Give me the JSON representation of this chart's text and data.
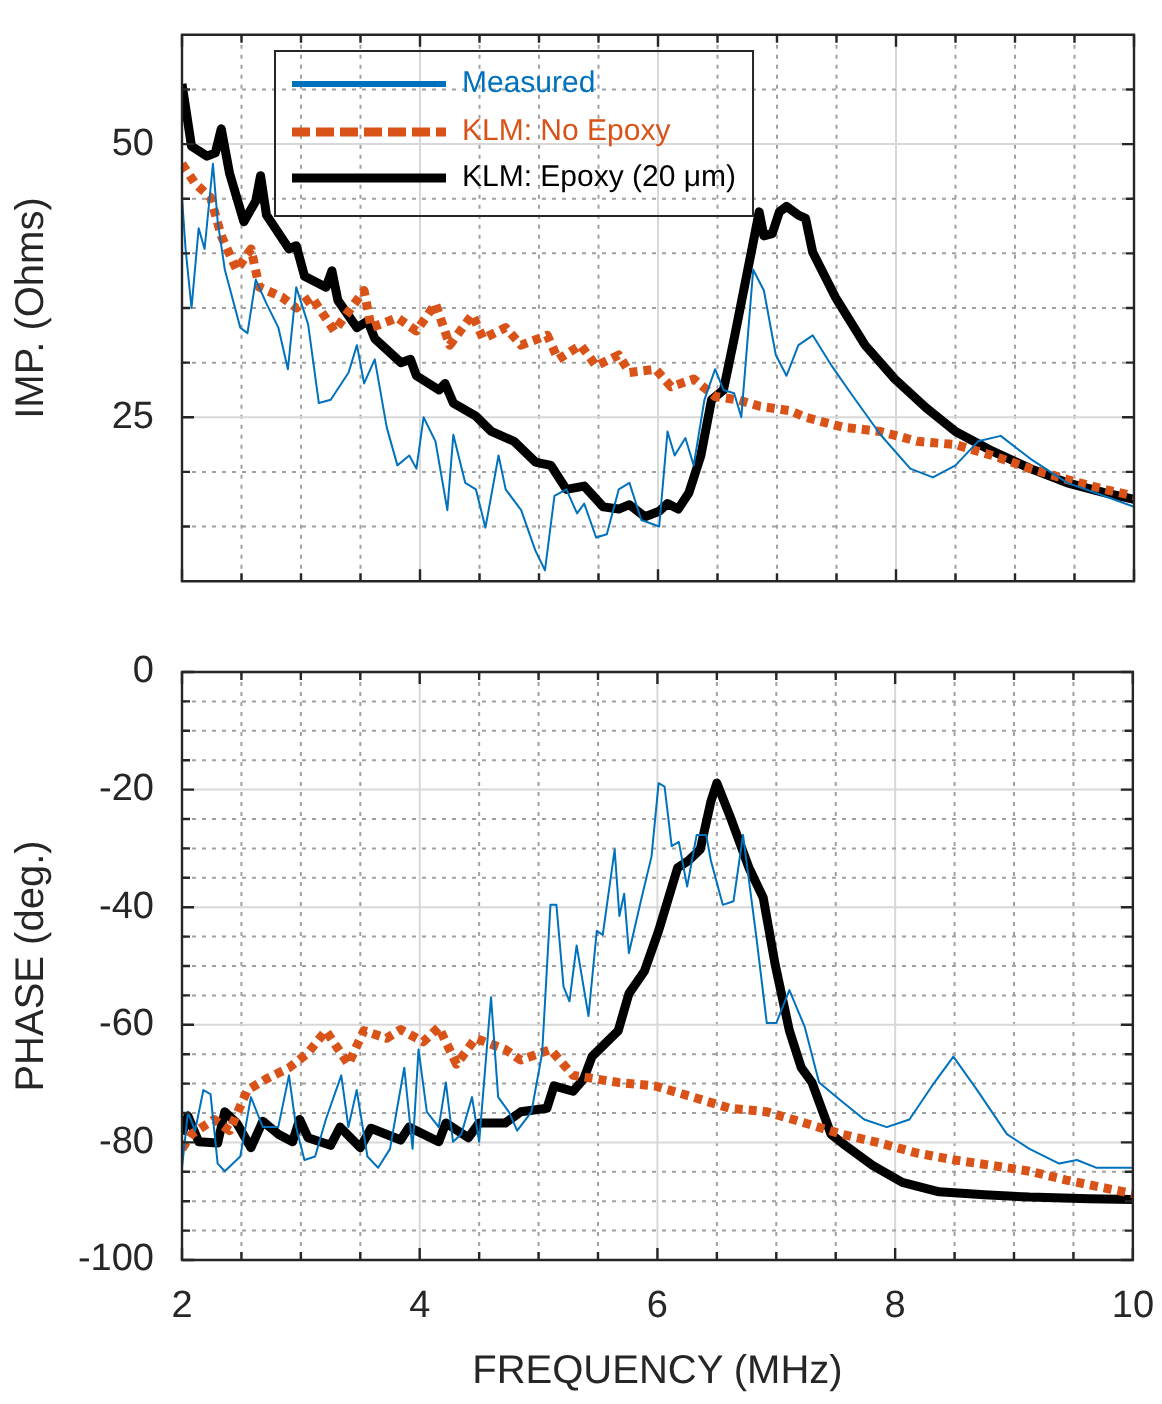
{
  "chart_data": [
    {
      "type": "line",
      "ylabel": "IMP. (Ohms)",
      "legend": "top",
      "grid": true,
      "marker": "none",
      "tick_labels": "y",
      "xlim": [
        2,
        10
      ],
      "xticks": [
        2,
        {
          "value": 2.5,
          "label": null
        },
        {
          "value": 3,
          "label": null
        },
        {
          "value": 3.5,
          "label": null
        },
        4,
        {
          "value": 4.5,
          "label": null
        },
        {
          "value": 5,
          "label": null
        },
        {
          "value": 5.5,
          "label": null
        },
        6,
        {
          "value": 6.5,
          "label": null
        },
        {
          "value": 7,
          "label": null
        },
        {
          "value": 7.5,
          "label": null
        },
        8,
        {
          "value": 8.5,
          "label": null
        },
        {
          "value": 9,
          "label": null
        },
        {
          "value": 9.5,
          "label": null
        },
        10
      ],
      "ylim": [
        10,
        60
      ],
      "yticks": [
        {
          "value": 15,
          "label": null
        },
        {
          "value": 20,
          "label": null
        },
        25,
        {
          "value": 30,
          "label": null
        },
        {
          "value": 35,
          "label": null
        },
        {
          "value": 40,
          "label": null
        },
        {
          "value": 45,
          "label": null
        },
        50,
        {
          "value": 55,
          "label": null
        }
      ],
      "series": [
        {
          "name": "Measured",
          "color": "#0072bd",
          "line_style": "solid",
          "x": [
            2.0,
            2.03,
            2.08,
            2.14,
            2.19,
            2.26,
            2.3,
            2.36,
            2.49,
            2.55,
            2.62,
            2.71,
            2.81,
            2.89,
            2.96,
            3.06,
            3.15,
            3.25,
            3.4,
            3.47,
            3.53,
            3.62,
            3.72,
            3.81,
            3.91,
            3.97,
            4.03,
            4.13,
            4.23,
            4.28,
            4.38,
            4.47,
            4.55,
            4.66,
            4.72,
            4.85,
            4.97,
            5.05,
            5.13,
            5.23,
            5.32,
            5.38,
            5.48,
            5.57,
            5.67,
            5.76,
            5.86,
            6.01,
            6.08,
            6.14,
            6.23,
            6.3,
            6.39,
            6.48,
            6.55,
            6.64,
            6.7,
            6.8,
            6.89,
            6.99,
            7.08,
            7.18,
            7.3,
            7.46,
            7.62,
            7.87,
            8.12,
            8.31,
            8.5,
            8.69,
            8.88,
            9.13,
            9.44,
            9.75,
            10
          ],
          "values": [
            45.1,
            40.4,
            35.0,
            42.3,
            40.4,
            48.2,
            42.9,
            38.5,
            33.2,
            32.7,
            37.6,
            35.4,
            33.2,
            29.4,
            36.9,
            33.5,
            26.3,
            26.6,
            29.1,
            31.6,
            28.1,
            30.3,
            24.1,
            20.6,
            21.5,
            20.3,
            25.0,
            22.8,
            16.5,
            23.4,
            19.0,
            18.4,
            14.9,
            21.5,
            18.4,
            16.5,
            12.8,
            11.0,
            17.8,
            18.4,
            16.2,
            17.1,
            14.0,
            14.3,
            18.4,
            19.0,
            15.6,
            15.0,
            23.7,
            21.5,
            23.1,
            20.6,
            26.6,
            29.4,
            27.5,
            27.2,
            25.0,
            38.5,
            36.6,
            30.7,
            28.8,
            31.6,
            32.5,
            29.7,
            27.2,
            23.4,
            20.3,
            19.5,
            20.6,
            22.8,
            23.3,
            21.2,
            19.0,
            17.8,
            16.8
          ]
        },
        {
          "name": "KLM: No Epoxy",
          "color": "#d95319",
          "line_style": "dotted",
          "x": [
            2.0,
            2.11,
            2.24,
            2.33,
            2.46,
            2.58,
            2.65,
            2.84,
            2.96,
            3.09,
            3.28,
            3.53,
            3.59,
            3.81,
            3.97,
            4.13,
            4.25,
            4.44,
            4.53,
            4.72,
            4.85,
            5.07,
            5.16,
            5.35,
            5.48,
            5.67,
            5.76,
            5.98,
            6.11,
            6.3,
            6.48,
            6.67,
            6.86,
            7.11,
            7.24,
            7.55,
            7.87,
            8.18,
            8.5,
            8.81,
            9.13,
            9.44,
            9.75,
            10
          ],
          "values": [
            48.2,
            46.4,
            45.1,
            41.6,
            38.5,
            40.4,
            36.9,
            36.0,
            35.0,
            36.0,
            32.9,
            36.6,
            33.2,
            34.1,
            32.9,
            35.4,
            31.6,
            34.4,
            32.2,
            33.2,
            31.6,
            32.5,
            30.3,
            31.6,
            29.7,
            30.7,
            29.1,
            29.4,
            27.8,
            28.5,
            26.9,
            26.6,
            26.0,
            25.6,
            25.0,
            24.1,
            23.7,
            22.8,
            22.5,
            21.5,
            20.3,
            19.3,
            18.4,
            17.8
          ]
        },
        {
          "name": "KLM: Epoxy (20 μm)",
          "color": "#000000",
          "line_style": "solid",
          "x": [
            2.0,
            2.08,
            2.21,
            2.28,
            2.33,
            2.4,
            2.52,
            2.62,
            2.66,
            2.71,
            2.9,
            2.96,
            3.03,
            3.21,
            3.26,
            3.31,
            3.47,
            3.56,
            3.62,
            3.84,
            3.92,
            3.97,
            4.16,
            4.21,
            4.28,
            4.47,
            4.6,
            4.79,
            4.97,
            5.1,
            5.23,
            5.38,
            5.54,
            5.67,
            5.76,
            5.89,
            6.01,
            6.08,
            6.17,
            6.26,
            6.36,
            6.45,
            6.55,
            6.64,
            6.8,
            6.85,
            6.89,
            6.96,
            7.02,
            7.08,
            7.18,
            7.24,
            7.3,
            7.49,
            7.74,
            7.99,
            8.25,
            8.5,
            8.81,
            9.13,
            9.44,
            9.75,
            10
          ],
          "values": [
            55.5,
            49.8,
            48.9,
            49.2,
            51.4,
            47.3,
            42.9,
            44.8,
            47.1,
            43.5,
            40.4,
            40.7,
            37.9,
            36.9,
            38.4,
            35.7,
            33.2,
            33.8,
            32.2,
            30.0,
            30.3,
            28.8,
            27.5,
            28.1,
            26.3,
            25.1,
            23.7,
            22.8,
            20.9,
            20.6,
            18.4,
            18.7,
            16.8,
            16.6,
            17.0,
            15.9,
            16.4,
            17.1,
            16.6,
            18.1,
            21.5,
            26.6,
            27.5,
            32.2,
            41.0,
            43.8,
            41.6,
            41.8,
            43.8,
            44.3,
            43.5,
            43.2,
            40.1,
            36.0,
            31.6,
            28.5,
            25.9,
            23.7,
            21.9,
            20.3,
            19.0,
            18.1,
            17.5
          ]
        }
      ]
    },
    {
      "type": "line",
      "xlabel": "FREQUENCY (MHz)",
      "ylabel": "PHASE (deg.)",
      "grid": true,
      "marker": "none",
      "xlim": [
        2,
        10
      ],
      "xticks": [
        2,
        {
          "value": 2.5,
          "label": null
        },
        {
          "value": 3,
          "label": null
        },
        {
          "value": 3.5,
          "label": null
        },
        4,
        {
          "value": 4.5,
          "label": null
        },
        {
          "value": 5,
          "label": null
        },
        {
          "value": 5.5,
          "label": null
        },
        6,
        {
          "value": 6.5,
          "label": null
        },
        {
          "value": 7,
          "label": null
        },
        {
          "value": 7.5,
          "label": null
        },
        8,
        {
          "value": 8.5,
          "label": null
        },
        {
          "value": 9,
          "label": null
        },
        {
          "value": 9.5,
          "label": null
        },
        10
      ],
      "ylim": [
        -100,
        0
      ],
      "yticks": [
        -100,
        {
          "value": -95,
          "label": null
        },
        {
          "value": -90,
          "label": null
        },
        {
          "value": -85,
          "label": null
        },
        -80,
        {
          "value": -75,
          "label": null
        },
        {
          "value": -70,
          "label": null
        },
        {
          "value": -65,
          "label": null
        },
        -60,
        {
          "value": -55,
          "label": null
        },
        {
          "value": -50,
          "label": null
        },
        {
          "value": -45,
          "label": null
        },
        -40,
        {
          "value": -35,
          "label": null
        },
        {
          "value": -30,
          "label": null
        },
        {
          "value": -25,
          "label": null
        },
        -20,
        {
          "value": -15,
          "label": null
        },
        {
          "value": -10,
          "label": null
        },
        {
          "value": -5,
          "label": null
        },
        0
      ],
      "series": [
        {
          "color": "#0072bd",
          "line_style": "solid",
          "x": [
            2.0,
            2.05,
            2.11,
            2.18,
            2.24,
            2.3,
            2.36,
            2.49,
            2.58,
            2.68,
            2.81,
            2.9,
            2.96,
            3.03,
            3.12,
            3.21,
            3.34,
            3.4,
            3.47,
            3.56,
            3.65,
            3.75,
            3.87,
            3.94,
            3.99,
            4.06,
            4.16,
            4.22,
            4.28,
            4.35,
            4.44,
            4.5,
            4.6,
            4.66,
            4.75,
            4.82,
            4.94,
            5.03,
            5.1,
            5.15,
            5.21,
            5.26,
            5.32,
            5.42,
            5.49,
            5.54,
            5.64,
            5.68,
            5.72,
            5.76,
            5.86,
            5.95,
            6.01,
            6.06,
            6.12,
            6.18,
            6.25,
            6.33,
            6.41,
            6.45,
            6.55,
            6.64,
            6.72,
            6.83,
            6.92,
            7.0,
            7.11,
            7.24,
            7.36,
            7.55,
            7.74,
            7.93,
            8.12,
            8.31,
            8.49,
            8.69,
            8.94,
            9.13,
            9.38,
            9.53,
            9.69,
            10
          ],
          "values": [
            -84.3,
            -74.8,
            -78.0,
            -71.1,
            -71.8,
            -83.6,
            -84.9,
            -82.4,
            -72.3,
            -77.4,
            -77.4,
            -68.6,
            -77.4,
            -83.0,
            -82.4,
            -76.1,
            -68.6,
            -77.4,
            -71.1,
            -82.4,
            -84.3,
            -81.1,
            -67.3,
            -81.1,
            -64.2,
            -74.8,
            -77.4,
            -69.8,
            -79.9,
            -78.6,
            -72.3,
            -79.9,
            -55.3,
            -72.3,
            -74.8,
            -78.0,
            -74.8,
            -64.8,
            -39.6,
            -39.6,
            -53.5,
            -56.0,
            -46.5,
            -58.5,
            -44.0,
            -44.7,
            -30.2,
            -41.5,
            -37.7,
            -47.8,
            -39.0,
            -31.4,
            -18.9,
            -19.5,
            -29.6,
            -28.9,
            -36.5,
            -27.7,
            -27.7,
            -32.1,
            -39.6,
            -39.0,
            -27.7,
            -44.7,
            -59.7,
            -59.7,
            -54.1,
            -60.4,
            -69.8,
            -73.0,
            -76.1,
            -77.4,
            -76.1,
            -70.4,
            -65.4,
            -71.1,
            -78.6,
            -81.1,
            -83.6,
            -83.0,
            -84.3,
            -84.3
          ]
        },
        {
          "color": "#d95319",
          "line_style": "dotted",
          "x": [
            2.0,
            2.08,
            2.27,
            2.4,
            2.55,
            2.71,
            2.9,
            3.06,
            3.21,
            3.4,
            3.53,
            3.72,
            3.84,
            4.03,
            4.16,
            4.31,
            4.47,
            4.72,
            4.85,
            5.1,
            5.29,
            5.67,
            5.98,
            6.3,
            6.61,
            6.92,
            7.24,
            7.55,
            7.87,
            8.18,
            8.5,
            8.81,
            9.13,
            9.44,
            9.75,
            10
          ],
          "values": [
            -81.1,
            -78.6,
            -76.1,
            -78.0,
            -71.1,
            -69.2,
            -67.3,
            -64.8,
            -61.0,
            -66.7,
            -61.0,
            -62.3,
            -60.8,
            -62.9,
            -60.4,
            -66.7,
            -62.3,
            -64.2,
            -66.0,
            -64.2,
            -68.6,
            -69.8,
            -70.4,
            -72.3,
            -74.2,
            -74.8,
            -76.7,
            -78.6,
            -80.1,
            -81.8,
            -83.0,
            -83.9,
            -84.9,
            -86.4,
            -87.7,
            -88.7
          ]
        },
        {
          "color": "#000000",
          "line_style": "solid",
          "x": [
            2.0,
            2.05,
            2.14,
            2.3,
            2.36,
            2.46,
            2.58,
            2.68,
            2.81,
            2.93,
            2.99,
            3.06,
            3.25,
            3.33,
            3.5,
            3.59,
            3.84,
            3.91,
            4.16,
            4.22,
            4.41,
            4.5,
            4.72,
            4.85,
            5.07,
            5.13,
            5.29,
            5.38,
            5.45,
            5.67,
            5.76,
            5.89,
            6.01,
            6.17,
            6.26,
            6.36,
            6.45,
            6.5,
            6.61,
            6.77,
            6.89,
            6.99,
            7.11,
            7.21,
            7.3,
            7.46,
            7.58,
            7.81,
            8.06,
            8.37,
            8.75,
            9.13,
            9.63,
            10
          ],
          "values": [
            -78.6,
            -75.5,
            -79.9,
            -80.1,
            -74.8,
            -76.7,
            -80.9,
            -76.4,
            -78.6,
            -79.9,
            -76.1,
            -79.2,
            -80.5,
            -77.4,
            -80.9,
            -77.6,
            -79.6,
            -77.4,
            -79.9,
            -76.7,
            -79.2,
            -76.7,
            -76.7,
            -74.8,
            -74.2,
            -70.4,
            -71.3,
            -69.2,
            -65.4,
            -61.0,
            -54.7,
            -50.9,
            -44.0,
            -33.3,
            -32.1,
            -30.2,
            -22.0,
            -18.9,
            -24.5,
            -33.3,
            -38.4,
            -49.7,
            -61.0,
            -67.3,
            -69.8,
            -78.6,
            -80.5,
            -83.9,
            -86.8,
            -88.4,
            -88.9,
            -89.3,
            -89.6,
            -89.7
          ]
        }
      ]
    }
  ]
}
